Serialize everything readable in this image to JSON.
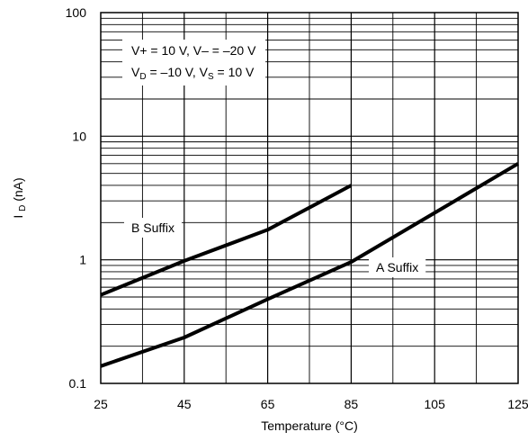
{
  "chart_data": {
    "type": "line",
    "title": "",
    "xlabel": "Temperature (°C)",
    "ylabel": {
      "main": "I",
      "sub": "D",
      "rest": " (nA)"
    },
    "xlim": [
      25,
      125
    ],
    "ylim": [
      0.1,
      100
    ],
    "yscale": "log",
    "grid": true,
    "x_ticks": [
      25,
      45,
      65,
      85,
      105,
      125
    ],
    "x_tick_labels": [
      "25",
      "45",
      "65",
      "85",
      "105",
      "125"
    ],
    "y_ticks": [
      0.1,
      1,
      10,
      100
    ],
    "y_tick_labels": [
      "0.1",
      "1",
      "10",
      "100"
    ],
    "conditions": [
      {
        "parts": [
          {
            "t": "V+ = 10 V, V– = –20 V"
          }
        ]
      },
      {
        "parts": [
          {
            "t": "V"
          },
          {
            "t": "D",
            "sub": true
          },
          {
            "t": " = –10 V, V"
          },
          {
            "t": "S",
            "sub": true
          },
          {
            "t": " = 10 V"
          }
        ]
      }
    ],
    "series": [
      {
        "name": "B Suffix",
        "x": [
          25,
          45,
          65,
          85
        ],
        "y": [
          0.52,
          0.98,
          1.75,
          4.0
        ]
      },
      {
        "name": "A Suffix",
        "x": [
          25,
          45,
          65,
          85,
          105,
          125
        ],
        "y": [
          0.138,
          0.235,
          0.48,
          0.96,
          2.4,
          6.0
        ]
      }
    ]
  }
}
